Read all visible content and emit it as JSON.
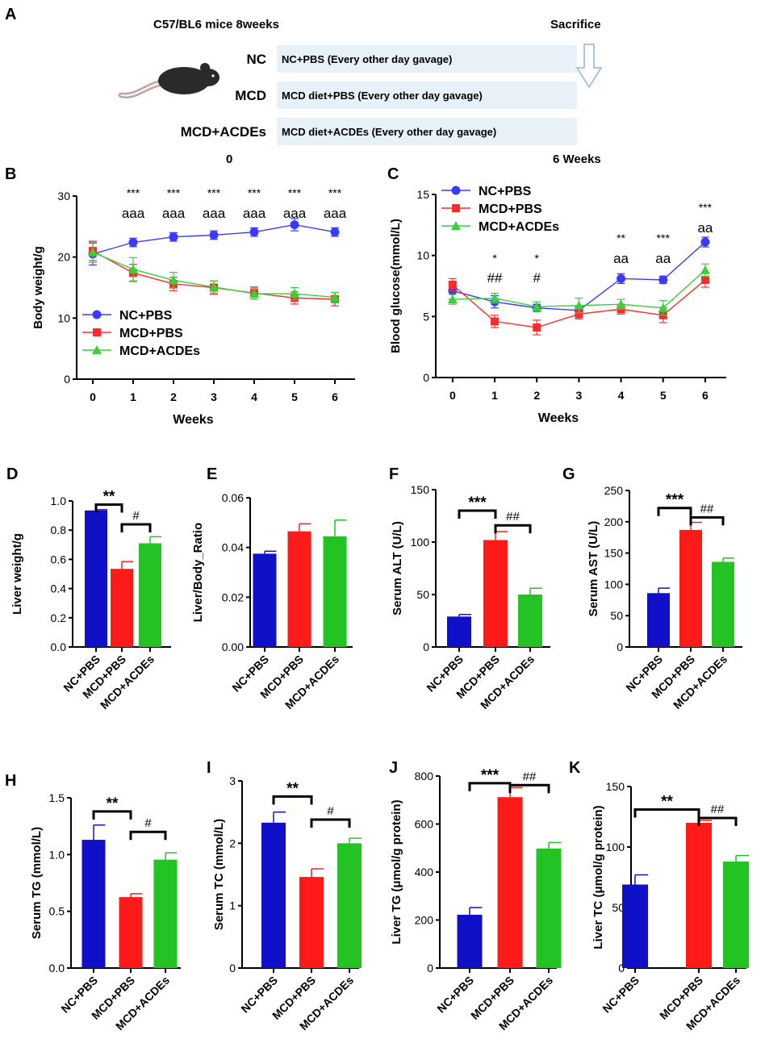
{
  "colors": {
    "blue": "#1010c8",
    "red": "#ff1a1a",
    "green": "#22c322",
    "line_blue": "#3a3aff",
    "line_red": "#ff2a2a",
    "line_green": "#3ccf3c",
    "timeline_box": "#e8f1f8",
    "arrow": "#8cb4dc",
    "mouse": "#2a2a2a",
    "tail": "#c8a0a0"
  },
  "panel_a": {
    "letter": "A",
    "mice_label": "C57/BL6 mice 8weeks",
    "sacrifice_label": "Sacrifice",
    "start_label": "0",
    "end_label": "6 Weeks",
    "groups": [
      {
        "name": "NC",
        "treatment": "NC+PBS (Every other day gavage)"
      },
      {
        "name": "MCD",
        "treatment": "MCD diet+PBS (Every other day gavage)"
      },
      {
        "name": "MCD+ACDEs",
        "treatment": "MCD diet+ACDEs (Every other day gavage)"
      }
    ]
  },
  "chart_data": [
    {
      "id": "B",
      "type": "line",
      "letter": "B",
      "xlabel": "Weeks",
      "ylabel": "Body weight/g",
      "x": [
        0,
        1,
        2,
        3,
        4,
        5,
        6
      ],
      "xlim": [
        -0.4,
        6.5
      ],
      "ylim": [
        0,
        30
      ],
      "yticks": [
        0,
        10,
        20,
        30
      ],
      "series": [
        {
          "name": "NC+PBS",
          "marker": "circle",
          "values": [
            20.5,
            22.4,
            23.3,
            23.6,
            24.1,
            25.3,
            24.1
          ],
          "errors": [
            1.8,
            0.7,
            0.7,
            0.7,
            0.7,
            1.0,
            0.7
          ]
        },
        {
          "name": "MCD+PBS",
          "marker": "square",
          "values": [
            21.0,
            17.4,
            15.6,
            15.0,
            14.1,
            13.3,
            13.1
          ],
          "errors": [
            1.6,
            1.4,
            1.1,
            1.1,
            1.0,
            1.0,
            1.1
          ]
        },
        {
          "name": "MCD+ACDEs",
          "marker": "triangle",
          "values": [
            20.8,
            18.0,
            16.2,
            15.1,
            14.0,
            14.0,
            13.4
          ],
          "errors": [
            1.7,
            1.9,
            1.3,
            1.0,
            0.9,
            1.0,
            0.8
          ]
        }
      ],
      "annotations": [
        {
          "x": 1,
          "lines": [
            "***",
            "aaa"
          ]
        },
        {
          "x": 2,
          "lines": [
            "***",
            "aaa"
          ]
        },
        {
          "x": 3,
          "lines": [
            "***",
            "aaa"
          ]
        },
        {
          "x": 4,
          "lines": [
            "***",
            "aaa"
          ]
        },
        {
          "x": 5,
          "lines": [
            "***",
            "aaa"
          ]
        },
        {
          "x": 6,
          "lines": [
            "***",
            "aaa"
          ]
        }
      ],
      "legend_position": "bottom-left"
    },
    {
      "id": "C",
      "type": "line",
      "letter": "C",
      "xlabel": "Weeks",
      "ylabel": "Blood glucose(mmol/L)",
      "x": [
        0,
        1,
        2,
        3,
        4,
        5,
        6
      ],
      "xlim": [
        -0.4,
        6.5
      ],
      "ylim": [
        0,
        15
      ],
      "yticks": [
        0,
        5,
        10,
        15
      ],
      "series": [
        {
          "name": "NC+PBS",
          "marker": "circle",
          "values": [
            7.1,
            6.2,
            5.7,
            5.5,
            8.1,
            8.0,
            11.1
          ],
          "errors": [
            0.7,
            0.5,
            0.3,
            0.3,
            0.4,
            0.3,
            0.4
          ]
        },
        {
          "name": "MCD+PBS",
          "marker": "square",
          "values": [
            7.6,
            4.6,
            4.1,
            5.2,
            5.6,
            5.1,
            8.0
          ],
          "errors": [
            0.5,
            0.5,
            0.6,
            0.4,
            0.4,
            0.6,
            0.6
          ]
        },
        {
          "name": "MCD+ACDEs",
          "marker": "triangle",
          "values": [
            6.4,
            6.5,
            5.8,
            5.9,
            6.0,
            5.7,
            8.8
          ],
          "errors": [
            0.4,
            0.4,
            0.4,
            0.6,
            0.4,
            0.6,
            0.5
          ]
        }
      ],
      "annotations": [
        {
          "x": 1,
          "lines": [
            "*",
            "##"
          ]
        },
        {
          "x": 2,
          "lines": [
            "*",
            "#"
          ]
        },
        {
          "x": 4,
          "lines": [
            "**",
            "aa"
          ]
        },
        {
          "x": 5,
          "lines": [
            "***",
            "aa"
          ]
        },
        {
          "x": 6,
          "lines": [
            "***",
            "aa"
          ]
        }
      ],
      "legend_position": "top-left"
    },
    {
      "id": "D",
      "type": "bar",
      "letter": "D",
      "ylabel": "Liver weight/g",
      "categories": [
        "NC+PBS",
        "MCD+PBS",
        "MCD+ACDEs"
      ],
      "values": [
        0.935,
        0.535,
        0.71
      ],
      "errors": [
        0.005,
        0.05,
        0.045
      ],
      "ylim": [
        0,
        1.0
      ],
      "yticks": [
        "0.0",
        "0.2",
        "0.4",
        "0.6",
        "0.8",
        "1.0"
      ],
      "sig": [
        {
          "from": 0,
          "to": 1,
          "label": "**",
          "level": 0.975
        },
        {
          "from": 1,
          "to": 2,
          "label": "#",
          "level": 0.84
        }
      ]
    },
    {
      "id": "E",
      "type": "bar",
      "letter": "E",
      "ylabel": "Liver/Body_Ratio",
      "categories": [
        "NC+PBS",
        "MCD+PBS",
        "MCD+ACDEs"
      ],
      "values": [
        0.0375,
        0.0465,
        0.0445
      ],
      "errors": [
        0.001,
        0.003,
        0.0065
      ],
      "ylim": [
        0,
        0.06
      ],
      "yticks": [
        "0.00",
        "0.02",
        "0.04",
        "0.06"
      ],
      "sig": []
    },
    {
      "id": "F",
      "type": "bar",
      "letter": "F",
      "ylabel": "Serum ALT  (U/L)",
      "categories": [
        "NC+PBS",
        "MCD+PBS",
        "MCD+ACDEs"
      ],
      "values": [
        29,
        102,
        50
      ],
      "errors": [
        2,
        8,
        6
      ],
      "ylim": [
        0,
        150
      ],
      "yticks": [
        "0",
        "50",
        "100",
        "150"
      ],
      "sig": [
        {
          "from": 0,
          "to": 1,
          "label": "***",
          "level": 130
        },
        {
          "from": 1,
          "to": 2,
          "label": "##",
          "level": 116
        }
      ]
    },
    {
      "id": "G",
      "type": "bar",
      "letter": "G",
      "ylabel": "Serum AST  (U/L)",
      "categories": [
        "NC+PBS",
        "MCD+PBS",
        "MCD+ACDEs"
      ],
      "values": [
        86,
        187,
        136
      ],
      "errors": [
        8,
        12,
        6
      ],
      "ylim": [
        0,
        250
      ],
      "yticks": [
        "0",
        "50",
        "100",
        "150",
        "200",
        "250"
      ],
      "sig": [
        {
          "from": 0,
          "to": 1,
          "label": "***",
          "level": 222
        },
        {
          "from": 1,
          "to": 2,
          "label": "##",
          "level": 207
        }
      ]
    },
    {
      "id": "H",
      "type": "bar",
      "letter": "H",
      "ylabel": "Serum TG  (mmol/L)",
      "categories": [
        "NC+PBS",
        "MCD+PBS",
        "MCD+ACDEs"
      ],
      "values": [
        1.13,
        0.625,
        0.955
      ],
      "errors": [
        0.13,
        0.03,
        0.06
      ],
      "ylim": [
        0,
        1.5
      ],
      "yticks": [
        "0.0",
        "0.5",
        "1.0",
        "1.5"
      ],
      "sig": [
        {
          "from": 0,
          "to": 1,
          "label": "**",
          "level": 1.38
        },
        {
          "from": 1,
          "to": 2,
          "label": "#",
          "level": 1.2
        }
      ]
    },
    {
      "id": "I",
      "type": "bar",
      "letter": "I",
      "ylabel": "Serum TC  (mmol/L)",
      "categories": [
        "NC+PBS",
        "MCD+PBS",
        "MCD+ACDEs"
      ],
      "values": [
        2.33,
        1.46,
        2.0
      ],
      "errors": [
        0.17,
        0.13,
        0.08
      ],
      "ylim": [
        0,
        3
      ],
      "yticks": [
        "0",
        "1",
        "2",
        "3"
      ],
      "sig": [
        {
          "from": 0,
          "to": 1,
          "label": "**",
          "level": 2.75
        },
        {
          "from": 1,
          "to": 2,
          "label": "#",
          "level": 2.38
        }
      ]
    },
    {
      "id": "J",
      "type": "bar",
      "letter": "J",
      "ylabel": "Liver TG  (μmol/g protein)",
      "categories": [
        "NC+PBS",
        "MCD+PBS",
        "MCD+ACDEs"
      ],
      "values": [
        222,
        712,
        498
      ],
      "errors": [
        30,
        40,
        25
      ],
      "ylim": [
        0,
        800
      ],
      "yticks": [
        "0",
        "200",
        "400",
        "600",
        "800"
      ],
      "sig": [
        {
          "from": 0,
          "to": 1,
          "label": "***",
          "level": 770
        },
        {
          "from": 1,
          "to": 2,
          "label": "##",
          "level": 762
        }
      ]
    },
    {
      "id": "K",
      "type": "bar",
      "letter": "K",
      "ylabel": "Liver TC  (μmol/g protein)",
      "categories": [
        "NC+PBS",
        "MCD+PBS",
        "MCD+ACDEs"
      ],
      "values": [
        69,
        120,
        88
      ],
      "errors": [
        8,
        2,
        5
      ],
      "ylim": [
        0,
        150
      ],
      "yticks": [
        "0",
        "50",
        "100",
        "150"
      ],
      "sig": [
        {
          "from": 0,
          "to": 1,
          "label": "**",
          "level": 131
        },
        {
          "from": 1,
          "to": 2,
          "label": "##",
          "level": 124
        }
      ]
    }
  ]
}
